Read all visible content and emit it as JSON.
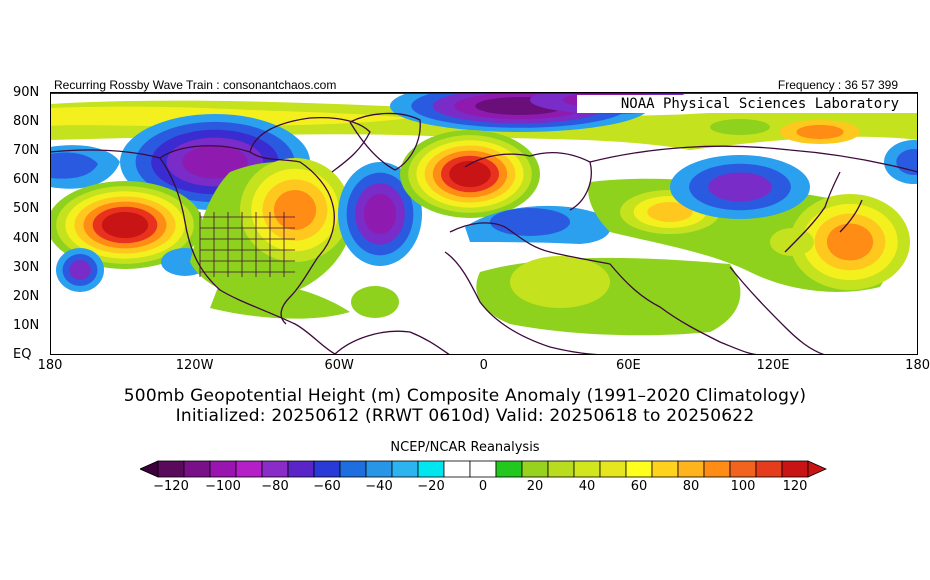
{
  "header": {
    "left": "Recurring Rossby Wave Train : consonantchaos.com",
    "right": "Frequency : 36 57 399",
    "badge": "NOAA Physical Sciences Laboratory"
  },
  "map": {
    "lat_labels": [
      "90N",
      "80N",
      "70N",
      "60N",
      "50N",
      "40N",
      "30N",
      "20N",
      "10N",
      "EQ"
    ],
    "lon_labels": [
      "180",
      "120W",
      "60W",
      "0",
      "60E",
      "120E",
      "180"
    ],
    "border_color": "#3d0a3d"
  },
  "titles": {
    "line1": "500mb Geopotential Height (m) Composite Anomaly (1991–2020 Climatology)",
    "line2": "Initialized: 20250612 (RRWT 0610d) Valid: 20250618 to 20250622",
    "source": "NCEP/NCAR Reanalysis"
  },
  "colorbar": {
    "ticks": [
      "−120",
      "−100",
      "−80",
      "−60",
      "−40",
      "−20",
      "0",
      "20",
      "40",
      "60",
      "80",
      "100",
      "120"
    ],
    "colors": [
      "#5a0a5a",
      "#7a0f8a",
      "#9a14b0",
      "#b41fc8",
      "#8a2cc8",
      "#5a24c8",
      "#2a3ad8",
      "#1e6ee0",
      "#2896e6",
      "#2cb4f0",
      "#00e6f0",
      "#ffffff",
      "#ffffff",
      "#22c81e",
      "#96d21e",
      "#b8dc1e",
      "#d2e61e",
      "#e6e61e",
      "#ffff1e",
      "#ffd21e",
      "#ffb41e",
      "#ff8c14",
      "#f0641e",
      "#e63c1e",
      "#c81414"
    ],
    "under_color": "#3c003c",
    "over_color": "#c81414"
  }
}
